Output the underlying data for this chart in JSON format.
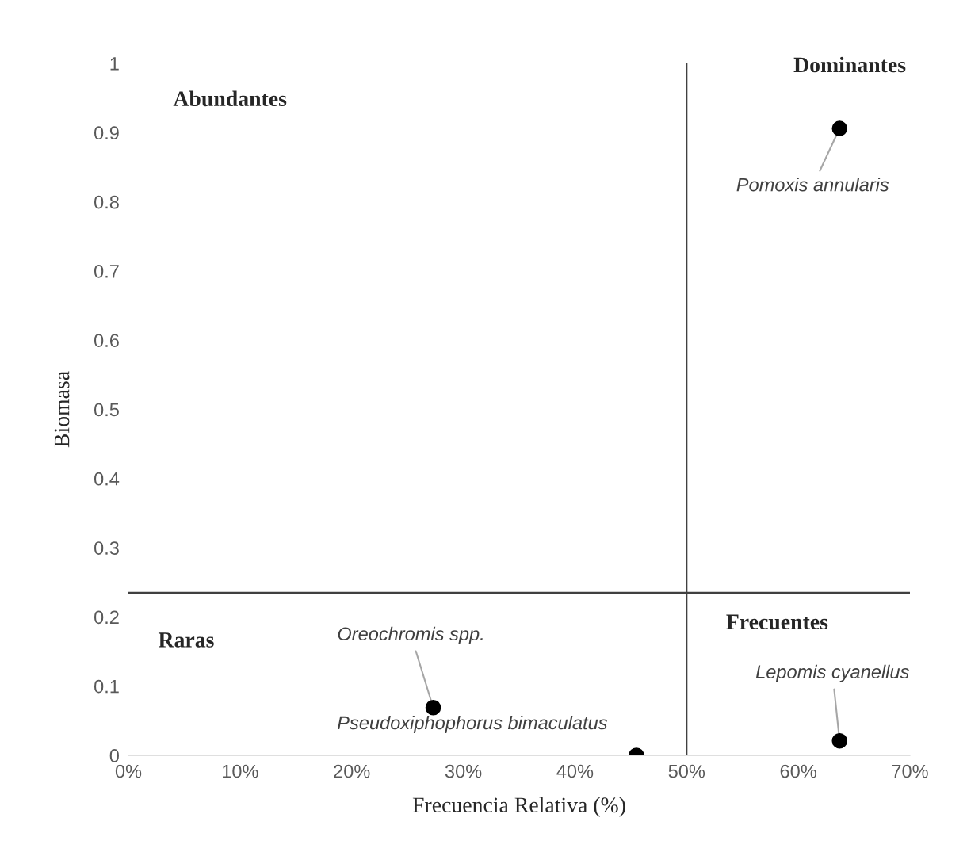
{
  "chart_data": {
    "type": "scatter",
    "xlabel": "Frecuencia Relativa (%)",
    "ylabel": "Biomasa",
    "x": [
      63.7,
      27.3,
      45.5,
      63.7
    ],
    "series": [
      {
        "color": "#000000",
        "values": [
          0.906,
          0.069,
          0,
          0.021
        ]
      }
    ],
    "xlim": [
      0,
      70
    ],
    "ylim": [
      0,
      1
    ],
    "xticks": [
      {
        "value": 0,
        "label": "0%"
      },
      {
        "value": 10,
        "label": "10%"
      },
      {
        "value": 20,
        "label": "20%"
      },
      {
        "value": 30,
        "label": "30%"
      },
      {
        "value": 40,
        "label": "40%"
      },
      {
        "value": 50,
        "label": "50%"
      },
      {
        "value": 60,
        "label": "60%"
      },
      {
        "value": 70,
        "label": "70%"
      }
    ],
    "yticks": [
      0,
      0.1,
      0.2,
      0.3,
      0.4,
      0.5,
      0.6,
      0.7,
      0.8,
      0.9,
      1
    ],
    "ref_lines": [
      {
        "axis": "x",
        "value": 50,
        "color": "#404040"
      },
      {
        "axis": "y",
        "value": 0.235,
        "color": "#404040"
      }
    ],
    "marker": "circle",
    "grid": false,
    "legend": false,
    "annotations": [
      "Abundantes",
      "Dominantes",
      "Raras",
      "Frecuentes",
      {
        "text": "Pomoxis annularis",
        "x": 63.7,
        "y": 0.906
      },
      {
        "text": "Oreochromis spp.",
        "x": 27.3,
        "y": 0.069
      },
      {
        "text": "Pseudoxiphophorus bimaculatus",
        "x": 45.5,
        "y": 0
      },
      {
        "text": "Lepomis cyanellus",
        "x": 63.7,
        "y": 0.021
      }
    ]
  }
}
